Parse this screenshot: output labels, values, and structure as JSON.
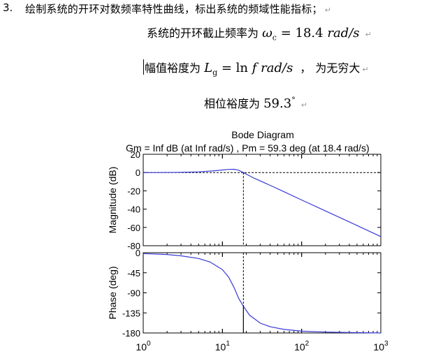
{
  "question": {
    "number": "3.",
    "text": "绘制系统的开环对数频率特性曲线，标出系统的频域性能指标；"
  },
  "line_crossover": {
    "prefix": "系统的开环截止频率为",
    "symbol": "ω",
    "subscript": "c",
    "equals": "=",
    "value": "18.4",
    "unit": "rad/s"
  },
  "line_gain_margin": {
    "prefix": "幅值裕度为",
    "symbol": "L",
    "subscript": "g",
    "equals": "=",
    "ln": "ln",
    "f": "f",
    "unit": "rad/s",
    "separator": "，",
    "suffix": "为无穷大"
  },
  "line_phase_margin": {
    "prefix": "相位裕度为",
    "value": "59.3",
    "degree": "°"
  },
  "return_mark": "↵",
  "colors": {
    "curve": "#3a3ad6",
    "axes": "#000000"
  },
  "chart_data": {
    "type": "line",
    "title": "Bode Diagram",
    "subtitle": "Gm = Inf dB (at Inf rad/s) ,  Pm = 59.3 deg (at 18.4 rad/s)",
    "x_scale": "log",
    "x_ticks": [
      1,
      10,
      100,
      1000
    ],
    "x_tick_labels": [
      {
        "base": "10",
        "exp": "0"
      },
      {
        "base": "10",
        "exp": "1"
      },
      {
        "base": "10",
        "exp": "2"
      },
      {
        "base": "10",
        "exp": "3"
      }
    ],
    "xlim": [
      1,
      1000
    ],
    "crossover_frequency": 18.4,
    "magnitude": {
      "ylabel": "Magnitude (dB)",
      "ylim": [
        -80,
        20
      ],
      "y_ticks": [
        20,
        0,
        -20,
        -40,
        -60,
        -80
      ],
      "x": [
        1,
        3,
        5,
        8,
        10,
        12,
        14,
        16,
        18.4,
        25,
        40,
        60,
        100,
        200,
        400,
        1000
      ],
      "y": [
        -0.1,
        0.2,
        0.8,
        2.0,
        2.8,
        3.4,
        3.6,
        2.6,
        0,
        -6,
        -14,
        -21,
        -30,
        -42,
        -54,
        -70
      ]
    },
    "phase": {
      "ylabel": "Phase (deg)",
      "ylim": [
        -180,
        0
      ],
      "y_ticks": [
        0,
        -45,
        -90,
        -135,
        -180
      ],
      "x": [
        1,
        2,
        3,
        5,
        7,
        10,
        12,
        14,
        16,
        18.4,
        22,
        30,
        40,
        60,
        100,
        200,
        400,
        1000
      ],
      "y": [
        -2,
        -4,
        -7,
        -13,
        -21,
        -38,
        -55,
        -78,
        -102,
        -120,
        -140,
        -158,
        -166,
        -172,
        -176,
        -178,
        -179,
        -180
      ]
    },
    "grid": false
  }
}
